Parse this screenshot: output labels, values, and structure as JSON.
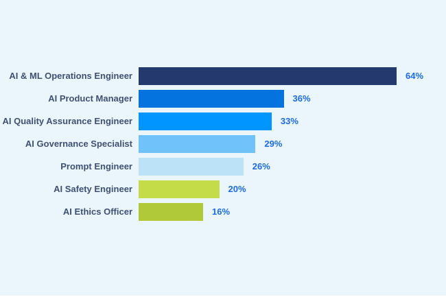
{
  "window": {
    "background_color": "#ebf5fc"
  },
  "chart_data": {
    "type": "bar",
    "orientation": "horizontal",
    "title": "",
    "xlabel": "",
    "ylabel": "",
    "categories": [
      "AI & ML Operations Engineer",
      "AI Product Manager",
      "AI Quality Assurance Engineer",
      "AI Governance Specialist",
      "Prompt Engineer",
      "AI Safety Engineer",
      "AI Ethics Officer"
    ],
    "values": [
      64,
      36,
      33,
      29,
      26,
      20,
      16
    ],
    "value_labels": [
      "64%",
      "36%",
      "33%",
      "29%",
      "26%",
      "20%",
      "16%"
    ],
    "bar_colors": [
      "#243a6e",
      "#0473e0",
      "#0095ff",
      "#6fc3fa",
      "#bce2f8",
      "#c3dc48",
      "#afc938"
    ],
    "xlim": [
      0,
      64
    ],
    "grid": false,
    "legend": false,
    "axes_visible": false,
    "category_label_color": "#3e5175",
    "value_label_color": "#1a6bef"
  }
}
